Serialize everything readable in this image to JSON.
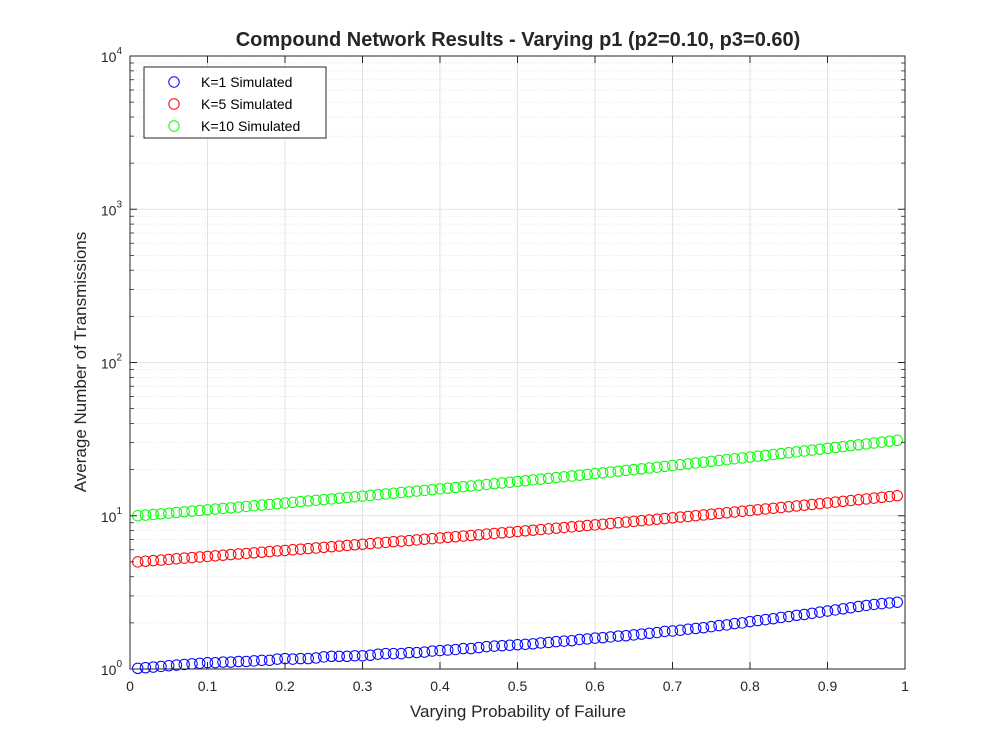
{
  "chart_data": {
    "type": "scatter",
    "title": "Compound Network Results - Varying p1 (p2=0.10, p3=0.60)",
    "xlabel": "Varying Probability of Failure",
    "ylabel": "Average Number of Transmissions",
    "xlim": [
      0,
      1
    ],
    "ylim": [
      1,
      10000
    ],
    "yscale": "log",
    "grid": true,
    "minor_grid": true,
    "legend_position": "top-left",
    "x_ticks": [
      "0",
      "0.1",
      "0.2",
      "0.3",
      "0.4",
      "0.5",
      "0.6",
      "0.7",
      "0.8",
      "0.9",
      "1"
    ],
    "y_ticks": [
      {
        "base": "10",
        "exp": "0"
      },
      {
        "base": "10",
        "exp": "1"
      },
      {
        "base": "10",
        "exp": "2"
      },
      {
        "base": "10",
        "exp": "3"
      },
      {
        "base": "10",
        "exp": "4"
      }
    ],
    "x": [
      0.01,
      0.02,
      0.03,
      0.04,
      0.05,
      0.06,
      0.07,
      0.08,
      0.09,
      0.1,
      0.11,
      0.12,
      0.13,
      0.14,
      0.15,
      0.16,
      0.17,
      0.18,
      0.19,
      0.2,
      0.21,
      0.22,
      0.23,
      0.24,
      0.25,
      0.26,
      0.27,
      0.28,
      0.29,
      0.3,
      0.31,
      0.32,
      0.33,
      0.34,
      0.35,
      0.36,
      0.37,
      0.38,
      0.39,
      0.4,
      0.41,
      0.42,
      0.43,
      0.44,
      0.45,
      0.46,
      0.47,
      0.48,
      0.49,
      0.5,
      0.51,
      0.52,
      0.53,
      0.54,
      0.55,
      0.56,
      0.57,
      0.58,
      0.59,
      0.6,
      0.61,
      0.62,
      0.63,
      0.64,
      0.65,
      0.66,
      0.67,
      0.68,
      0.69,
      0.7,
      0.71,
      0.72,
      0.73,
      0.74,
      0.75,
      0.76,
      0.77,
      0.78,
      0.79,
      0.8,
      0.81,
      0.82,
      0.83,
      0.84,
      0.85,
      0.86,
      0.87,
      0.88,
      0.89,
      0.9,
      0.91,
      0.92,
      0.93,
      0.94,
      0.95,
      0.96,
      0.97,
      0.98,
      0.99
    ],
    "series": [
      {
        "name": "K=1 Simulated",
        "color": "#0000ff",
        "marker": "open-circle",
        "values": [
          1.01,
          1.02,
          1.03,
          1.04,
          1.05,
          1.06,
          1.07,
          1.08,
          1.09,
          1.1,
          1.1,
          1.11,
          1.11,
          1.12,
          1.12,
          1.13,
          1.14,
          1.14,
          1.16,
          1.17,
          1.16,
          1.17,
          1.17,
          1.18,
          1.2,
          1.21,
          1.21,
          1.21,
          1.22,
          1.22,
          1.23,
          1.25,
          1.26,
          1.26,
          1.26,
          1.28,
          1.28,
          1.29,
          1.31,
          1.32,
          1.33,
          1.34,
          1.36,
          1.36,
          1.38,
          1.4,
          1.41,
          1.42,
          1.43,
          1.44,
          1.45,
          1.46,
          1.48,
          1.49,
          1.51,
          1.52,
          1.53,
          1.56,
          1.57,
          1.59,
          1.6,
          1.62,
          1.64,
          1.65,
          1.67,
          1.69,
          1.71,
          1.73,
          1.76,
          1.77,
          1.79,
          1.82,
          1.84,
          1.86,
          1.89,
          1.92,
          1.94,
          1.98,
          2.0,
          2.04,
          2.07,
          2.1,
          2.13,
          2.17,
          2.2,
          2.24,
          2.27,
          2.31,
          2.35,
          2.39,
          2.43,
          2.47,
          2.51,
          2.56,
          2.6,
          2.64,
          2.67,
          2.7,
          2.73
        ]
      },
      {
        "name": "K=5 Simulated",
        "color": "#ff0000",
        "marker": "open-circle",
        "values": [
          5.0,
          5.05,
          5.1,
          5.14,
          5.19,
          5.24,
          5.29,
          5.33,
          5.38,
          5.43,
          5.48,
          5.53,
          5.58,
          5.63,
          5.68,
          5.73,
          5.78,
          5.84,
          5.89,
          5.94,
          6.0,
          6.05,
          6.11,
          6.16,
          6.22,
          6.28,
          6.34,
          6.4,
          6.46,
          6.52,
          6.58,
          6.64,
          6.7,
          6.77,
          6.83,
          6.89,
          6.96,
          7.03,
          7.09,
          7.16,
          7.23,
          7.3,
          7.37,
          7.44,
          7.51,
          7.59,
          7.66,
          7.74,
          7.81,
          7.89,
          7.97,
          8.05,
          8.13,
          8.21,
          8.29,
          8.38,
          8.46,
          8.55,
          8.64,
          8.72,
          8.81,
          8.91,
          9.0,
          9.09,
          9.19,
          9.29,
          9.39,
          9.49,
          9.59,
          9.69,
          9.8,
          9.9,
          10.01,
          10.12,
          10.23,
          10.35,
          10.46,
          10.58,
          10.7,
          10.82,
          10.94,
          11.07,
          11.19,
          11.32,
          11.45,
          11.58,
          11.72,
          11.85,
          11.99,
          12.13,
          12.27,
          12.42,
          12.57,
          12.72,
          12.87,
          13.03,
          13.19,
          13.35,
          13.51
        ]
      },
      {
        "name": "K=10 Simulated",
        "color": "#00ff00",
        "marker": "open-circle",
        "values": [
          10.0,
          10.1,
          10.2,
          10.3,
          10.4,
          10.51,
          10.61,
          10.72,
          10.83,
          10.94,
          11.05,
          11.16,
          11.27,
          11.39,
          11.51,
          11.62,
          11.74,
          11.86,
          11.98,
          12.11,
          12.23,
          12.36,
          12.49,
          12.62,
          12.75,
          12.88,
          13.02,
          13.16,
          13.3,
          13.44,
          13.58,
          13.73,
          13.87,
          14.02,
          14.18,
          14.33,
          14.49,
          14.64,
          14.8,
          14.97,
          15.13,
          15.3,
          15.47,
          15.65,
          15.82,
          16.0,
          16.18,
          16.37,
          16.56,
          16.75,
          16.94,
          17.14,
          17.34,
          17.54,
          17.75,
          17.96,
          18.17,
          18.39,
          18.61,
          18.83,
          19.06,
          19.29,
          19.52,
          19.76,
          20.0,
          20.25,
          20.5,
          20.75,
          21.01,
          21.27,
          21.54,
          21.81,
          22.09,
          22.37,
          22.65,
          22.94,
          23.24,
          23.54,
          23.84,
          24.15,
          24.46,
          24.78,
          25.11,
          25.44,
          25.77,
          26.11,
          26.46,
          26.81,
          27.17,
          27.53,
          27.9,
          28.27,
          28.65,
          29.04,
          29.43,
          29.83,
          30.23,
          30.64,
          31.06
        ]
      }
    ]
  }
}
